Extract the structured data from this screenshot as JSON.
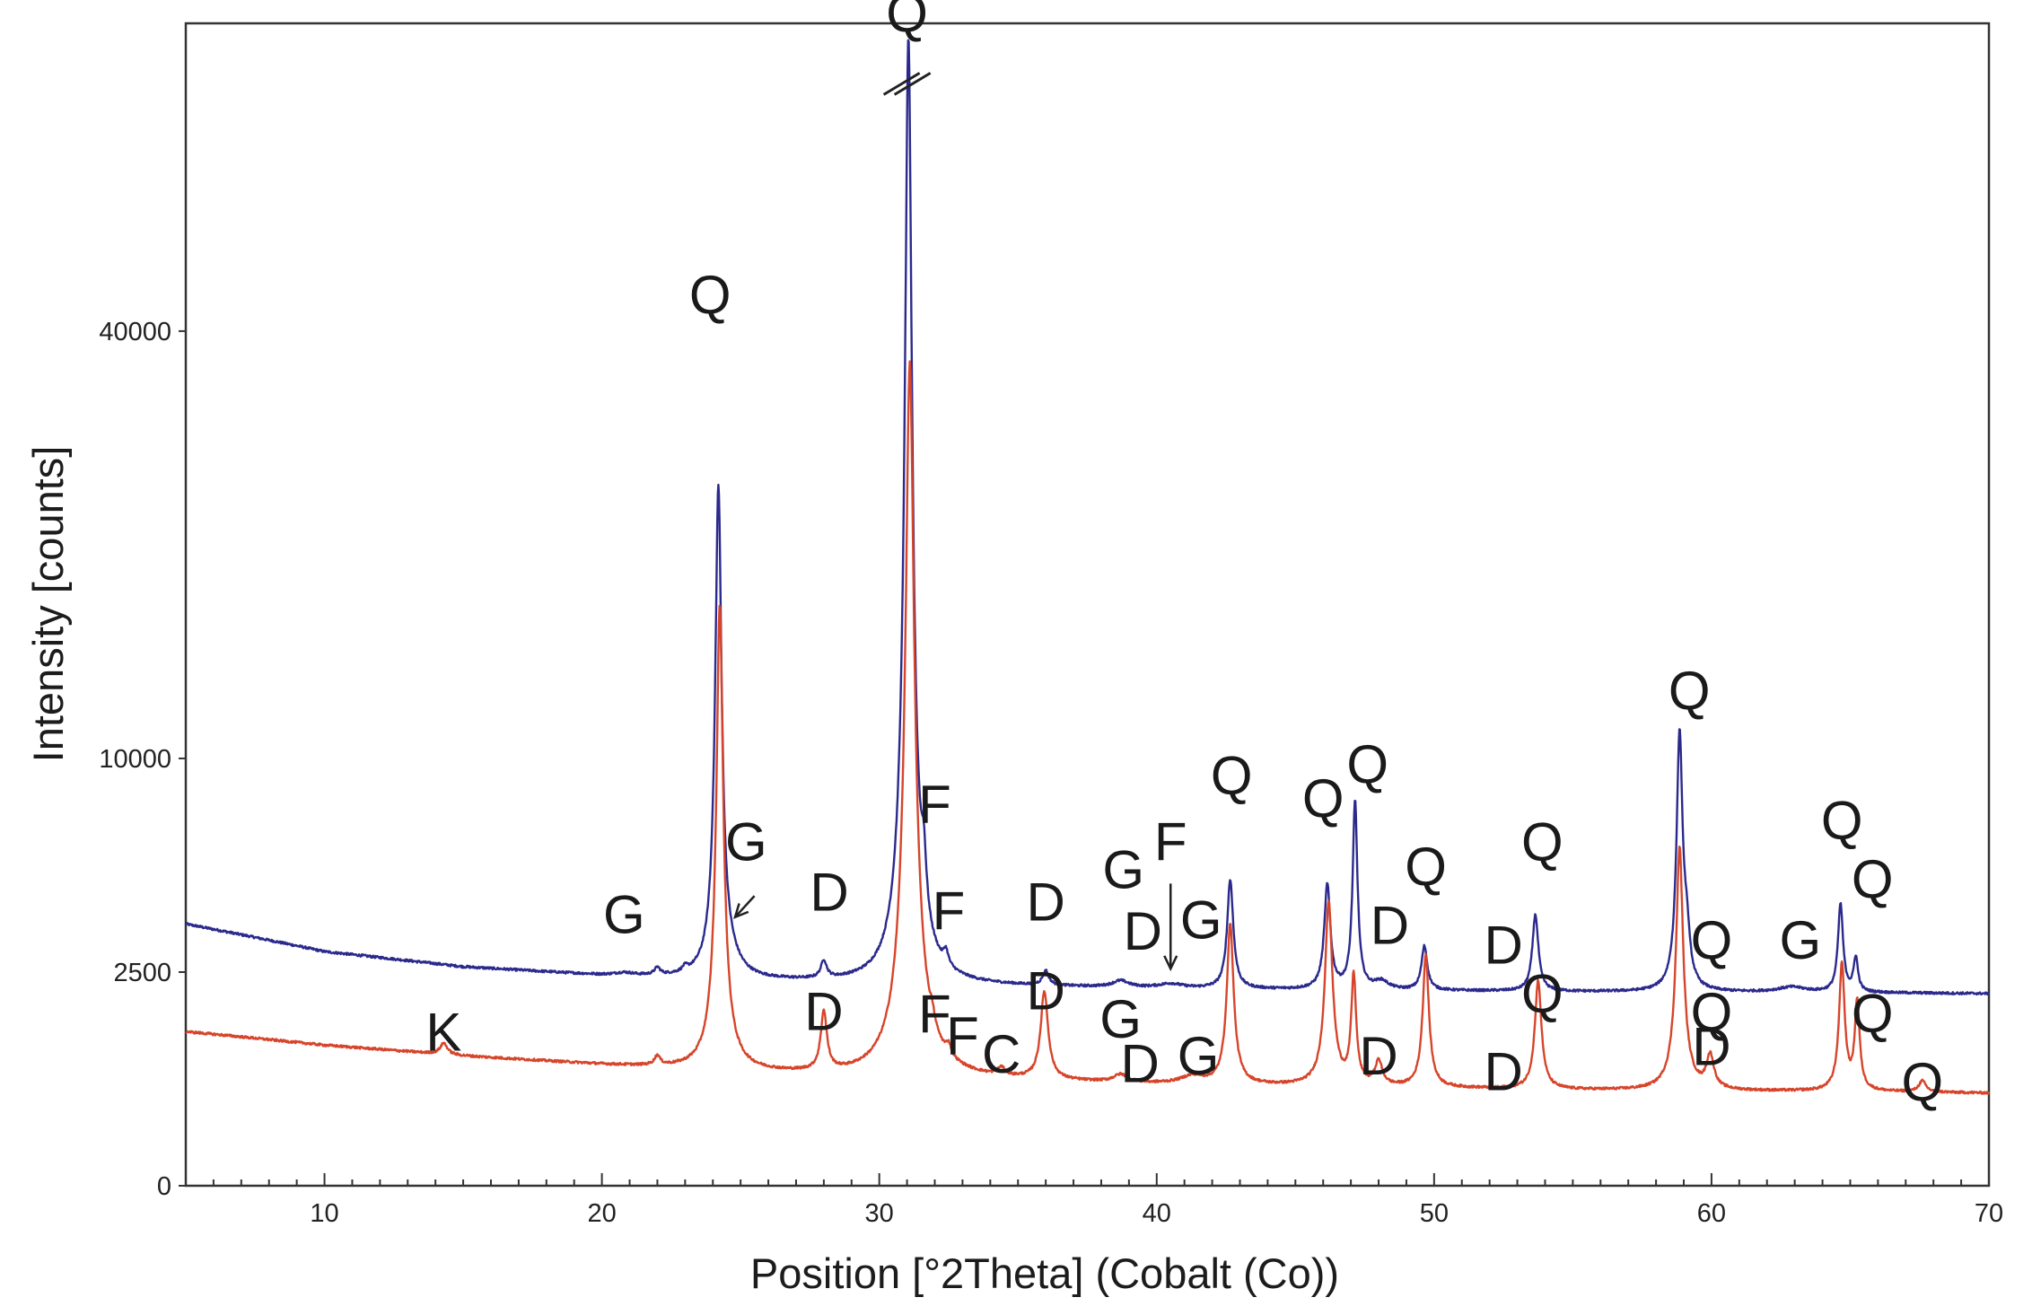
{
  "chart_data": {
    "type": "line",
    "title": "",
    "xlabel": "Position [°2Theta] (Cobalt (Co))",
    "ylabel": "Intensity [counts]",
    "xlim": [
      5,
      70
    ],
    "x_ticks": [
      10,
      20,
      30,
      40,
      50,
      60,
      70
    ],
    "x_tick_labels": [
      "10",
      "20",
      "30",
      "40",
      "50",
      "60",
      "70"
    ],
    "y_tick_labels": [
      "0",
      "2500",
      "10000",
      "40000"
    ],
    "y_scale": "square-root (ticks 0, 2500, 10000, 40000 equally spaced)",
    "y_max_display": 74000,
    "axis_break": {
      "x": 31.0,
      "symbol": "//",
      "note": "main quartz peak truncated"
    },
    "grid": false,
    "series": [
      {
        "name": "upper",
        "color": "#2b2a8c",
        "baseline": [
          [
            5,
            3750
          ],
          [
            10,
            3000
          ],
          [
            15,
            2620
          ],
          [
            20,
            2420
          ],
          [
            25,
            2300
          ],
          [
            30,
            2230
          ],
          [
            35,
            2170
          ],
          [
            40,
            2130
          ],
          [
            45,
            2100
          ],
          [
            50,
            2080
          ],
          [
            55,
            2060
          ],
          [
            60,
            2050
          ],
          [
            65,
            2040
          ],
          [
            70,
            2020
          ]
        ],
        "peaks": [
          {
            "pos": 20.8,
            "height": 60,
            "width": 0.4
          },
          {
            "pos": 22.0,
            "height": 170,
            "width": 0.12
          },
          {
            "pos": 23.0,
            "height": 110,
            "width": 0.12
          },
          {
            "pos": 24.2,
            "height": 24500,
            "width": 0.11
          },
          {
            "pos": 24.6,
            "height": 260,
            "width": 0.45
          },
          {
            "pos": 28.0,
            "height": 420,
            "width": 0.12
          },
          {
            "pos": 31.05,
            "height": 70000,
            "width": 0.12
          },
          {
            "pos": 31.6,
            "height": 1900,
            "width": 0.1
          },
          {
            "pos": 32.4,
            "height": 350,
            "width": 0.1
          },
          {
            "pos": 36.0,
            "height": 330,
            "width": 0.13
          },
          {
            "pos": 38.7,
            "height": 140,
            "width": 0.35
          },
          {
            "pos": 40.5,
            "height": 90,
            "width": 0.5
          },
          {
            "pos": 42.65,
            "height": 3000,
            "width": 0.12
          },
          {
            "pos": 46.15,
            "height": 2850,
            "width": 0.12
          },
          {
            "pos": 47.15,
            "height": 6000,
            "width": 0.09
          },
          {
            "pos": 48.1,
            "height": 180,
            "width": 0.3
          },
          {
            "pos": 49.65,
            "height": 1050,
            "width": 0.12
          },
          {
            "pos": 53.65,
            "height": 1950,
            "width": 0.12
          },
          {
            "pos": 58.85,
            "height": 9200,
            "width": 0.11
          },
          {
            "pos": 59.1,
            "height": 1200,
            "width": 0.12
          },
          {
            "pos": 62.9,
            "height": 110,
            "width": 0.6
          },
          {
            "pos": 64.65,
            "height": 2300,
            "width": 0.1
          },
          {
            "pos": 65.2,
            "height": 800,
            "width": 0.09
          }
        ]
      },
      {
        "name": "lower",
        "color": "#d6452b",
        "baseline": [
          [
            5,
            1300
          ],
          [
            10,
            1080
          ],
          [
            15,
            920
          ],
          [
            20,
            800
          ],
          [
            25,
            700
          ],
          [
            30,
            640
          ],
          [
            35,
            600
          ],
          [
            40,
            560
          ],
          [
            45,
            540
          ],
          [
            50,
            520
          ],
          [
            55,
            500
          ],
          [
            60,
            490
          ],
          [
            65,
            485
          ],
          [
            70,
            470
          ]
        ],
        "peaks": [
          {
            "pos": 14.3,
            "height": 170,
            "width": 0.15
          },
          {
            "pos": 22.0,
            "height": 130,
            "width": 0.12
          },
          {
            "pos": 24.25,
            "height": 17800,
            "width": 0.11
          },
          {
            "pos": 28.0,
            "height": 950,
            "width": 0.12
          },
          {
            "pos": 31.1,
            "height": 36500,
            "width": 0.14
          },
          {
            "pos": 31.9,
            "height": 200,
            "width": 0.1
          },
          {
            "pos": 32.5,
            "height": 160,
            "width": 0.1
          },
          {
            "pos": 34.4,
            "height": 100,
            "width": 0.15
          },
          {
            "pos": 35.95,
            "height": 1450,
            "width": 0.14
          },
          {
            "pos": 38.7,
            "height": 90,
            "width": 0.3
          },
          {
            "pos": 41.3,
            "height": 90,
            "width": 0.5
          },
          {
            "pos": 42.65,
            "height": 3200,
            "width": 0.12
          },
          {
            "pos": 46.2,
            "height": 3900,
            "width": 0.13
          },
          {
            "pos": 47.1,
            "height": 1900,
            "width": 0.09
          },
          {
            "pos": 48.0,
            "height": 300,
            "width": 0.15
          },
          {
            "pos": 49.7,
            "height": 2400,
            "width": 0.11
          },
          {
            "pos": 53.75,
            "height": 1800,
            "width": 0.12
          },
          {
            "pos": 58.85,
            "height": 5800,
            "width": 0.12
          },
          {
            "pos": 59.95,
            "height": 420,
            "width": 0.15
          },
          {
            "pos": 64.7,
            "height": 2250,
            "width": 0.1
          },
          {
            "pos": 65.25,
            "height": 1400,
            "width": 0.09
          },
          {
            "pos": 67.6,
            "height": 120,
            "width": 0.15
          }
        ]
      }
    ],
    "annotations": [
      {
        "text": "Q",
        "x": 31.0,
        "y": 73000
      },
      {
        "text": "Q",
        "x": 23.9,
        "y": 41700
      },
      {
        "text": "G",
        "x": 25.2,
        "y": 5800
      },
      {
        "text": "G",
        "x": 20.8,
        "y": 3500
      },
      {
        "text": "D",
        "x": 28.2,
        "y": 4150
      },
      {
        "text": "F",
        "x": 32.0,
        "y": 7200
      },
      {
        "text": "F",
        "x": 32.5,
        "y": 3600
      },
      {
        "text": "D",
        "x": 36.0,
        "y": 3850
      },
      {
        "text": "G",
        "x": 38.8,
        "y": 4850
      },
      {
        "text": "F",
        "x": 40.5,
        "y": 5800
      },
      {
        "text": "D",
        "x": 39.5,
        "y": 3050
      },
      {
        "text": "G",
        "x": 41.6,
        "y": 3350
      },
      {
        "text": "Q",
        "x": 42.7,
        "y": 8400
      },
      {
        "text": "Q",
        "x": 46.0,
        "y": 7450
      },
      {
        "text": "Q",
        "x": 47.6,
        "y": 8900
      },
      {
        "text": "D",
        "x": 48.4,
        "y": 3200
      },
      {
        "text": "Q",
        "x": 49.7,
        "y": 4950
      },
      {
        "text": "D",
        "x": 52.5,
        "y": 2700
      },
      {
        "text": "Q",
        "x": 53.9,
        "y": 5800
      },
      {
        "text": "Q",
        "x": 59.2,
        "y": 12450
      },
      {
        "text": "Q",
        "x": 60.0,
        "y": 2820
      },
      {
        "text": "G",
        "x": 63.2,
        "y": 2820
      },
      {
        "text": "Q",
        "x": 64.7,
        "y": 6600
      },
      {
        "text": "Q",
        "x": 65.8,
        "y": 4550
      },
      {
        "text": "K",
        "x": 14.3,
        "y": 1000
      },
      {
        "text": "D",
        "x": 28.0,
        "y": 1330
      },
      {
        "text": "D",
        "x": 36.0,
        "y": 1700
      },
      {
        "text": "F",
        "x": 32.0,
        "y": 1280
      },
      {
        "text": "F",
        "x": 33.0,
        "y": 940
      },
      {
        "text": "C",
        "x": 34.4,
        "y": 700
      },
      {
        "text": "G",
        "x": 38.7,
        "y": 1200
      },
      {
        "text": "D",
        "x": 39.4,
        "y": 590
      },
      {
        "text": "G",
        "x": 41.5,
        "y": 680
      },
      {
        "text": "D",
        "x": 48.0,
        "y": 680
      },
      {
        "text": "D",
        "x": 52.5,
        "y": 500
      },
      {
        "text": "Q",
        "x": 53.9,
        "y": 1650
      },
      {
        "text": "Q",
        "x": 60.0,
        "y": 1320
      },
      {
        "text": "D",
        "x": 60.0,
        "y": 800
      },
      {
        "text": "Q",
        "x": 65.8,
        "y": 1300
      },
      {
        "text": "Q",
        "x": 67.6,
        "y": 400
      }
    ],
    "arrows": [
      {
        "label": "G",
        "from": [
          25.5,
          4600
        ],
        "to": [
          24.8,
          3950
        ]
      },
      {
        "label": "F",
        "from": [
          40.5,
          5000
        ],
        "to": [
          40.5,
          2580
        ]
      }
    ]
  }
}
